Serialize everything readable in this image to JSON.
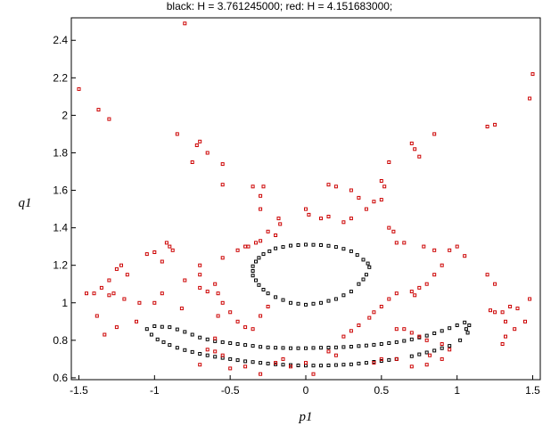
{
  "chart_data": {
    "type": "scatter",
    "title": "black: H = 3.761245000;   red: H = 4.151683000;",
    "xlabel": "p1",
    "ylabel": "q1",
    "xlim": [
      -1.55,
      1.55
    ],
    "ylim": [
      0.59,
      2.52
    ],
    "x_ticks": [
      -1.5,
      -1,
      -0.5,
      0,
      0.5,
      1,
      1.5
    ],
    "x_tick_labels": [
      "-1.5",
      "-1",
      "-0.5",
      "0",
      "0.5",
      "1",
      "1.5"
    ],
    "y_ticks": [
      0.6,
      0.8,
      1,
      1.2,
      1.4,
      1.6,
      1.8,
      2,
      2.2,
      2.4
    ],
    "y_tick_labels": [
      "0.6",
      "0.8",
      "1",
      "1.2",
      "1.4",
      "1.6",
      "1.8",
      "2",
      "2.2",
      "2.4"
    ],
    "grid": false,
    "legend": "none",
    "series": [
      {
        "color": "#000000",
        "marker": "square-open",
        "points": [
          [
            0.0,
            1.31
          ],
          [
            0.1,
            1.308
          ],
          [
            0.2,
            1.298
          ],
          [
            0.3,
            1.275
          ],
          [
            0.38,
            1.23
          ],
          [
            0.42,
            1.19
          ],
          [
            0.4,
            1.15
          ],
          [
            0.35,
            1.1
          ],
          [
            0.3,
            1.06
          ],
          [
            0.2,
            1.02
          ],
          [
            0.1,
            1.0
          ],
          [
            0.0,
            0.99
          ],
          [
            -0.1,
            1.0
          ],
          [
            -0.2,
            1.03
          ],
          [
            -0.28,
            1.07
          ],
          [
            -0.33,
            1.12
          ],
          [
            -0.35,
            1.17
          ],
          [
            -0.33,
            1.22
          ],
          [
            -0.28,
            1.26
          ],
          [
            -0.2,
            1.29
          ],
          [
            -0.1,
            1.305
          ],
          [
            0.05,
            1.309
          ],
          [
            0.15,
            1.304
          ],
          [
            0.25,
            1.288
          ],
          [
            0.34,
            1.255
          ],
          [
            0.41,
            1.21
          ],
          [
            0.38,
            1.125
          ],
          [
            0.25,
            1.04
          ],
          [
            0.15,
            1.01
          ],
          [
            0.05,
            0.995
          ],
          [
            -0.05,
            0.995
          ],
          [
            -0.15,
            1.015
          ],
          [
            -0.25,
            1.05
          ],
          [
            -0.31,
            1.095
          ],
          [
            -0.35,
            1.145
          ],
          [
            -0.35,
            1.195
          ],
          [
            -0.31,
            1.24
          ],
          [
            -0.24,
            1.275
          ],
          [
            -0.15,
            1.298
          ],
          [
            -0.05,
            1.308
          ],
          [
            -1.05,
            0.86
          ],
          [
            -1.0,
            0.875
          ],
          [
            -0.9,
            0.87
          ],
          [
            -0.8,
            0.845
          ],
          [
            -0.7,
            0.815
          ],
          [
            -0.6,
            0.795
          ],
          [
            -0.5,
            0.785
          ],
          [
            -0.4,
            0.775
          ],
          [
            -0.3,
            0.765
          ],
          [
            -0.2,
            0.76
          ],
          [
            -0.1,
            0.758
          ],
          [
            0.0,
            0.758
          ],
          [
            0.1,
            0.76
          ],
          [
            0.2,
            0.762
          ],
          [
            0.3,
            0.766
          ],
          [
            0.4,
            0.772
          ],
          [
            0.5,
            0.78
          ],
          [
            0.6,
            0.79
          ],
          [
            0.7,
            0.805
          ],
          [
            0.8,
            0.825
          ],
          [
            0.9,
            0.85
          ],
          [
            1.0,
            0.88
          ],
          [
            1.05,
            0.895
          ],
          [
            1.08,
            0.88
          ],
          [
            1.07,
            0.84
          ],
          [
            1.02,
            0.8
          ],
          [
            0.95,
            0.77
          ],
          [
            0.85,
            0.745
          ],
          [
            0.75,
            0.725
          ],
          [
            0.6,
            0.7
          ],
          [
            0.5,
            0.69
          ],
          [
            0.4,
            0.68
          ],
          [
            0.3,
            0.672
          ],
          [
            0.2,
            0.668
          ],
          [
            0.1,
            0.665
          ],
          [
            0.0,
            0.665
          ],
          [
            -0.1,
            0.668
          ],
          [
            -0.2,
            0.672
          ],
          [
            -0.3,
            0.68
          ],
          [
            -0.4,
            0.688
          ],
          [
            -0.5,
            0.7
          ],
          [
            -0.6,
            0.712
          ],
          [
            -0.7,
            0.728
          ],
          [
            -0.8,
            0.748
          ],
          [
            -0.9,
            0.775
          ],
          [
            -0.98,
            0.805
          ],
          [
            -1.02,
            0.83
          ],
          [
            -0.95,
            0.872
          ],
          [
            -0.85,
            0.858
          ],
          [
            -0.75,
            0.83
          ],
          [
            -0.65,
            0.805
          ],
          [
            -0.55,
            0.79
          ],
          [
            -0.45,
            0.78
          ],
          [
            -0.35,
            0.77
          ],
          [
            -0.25,
            0.762
          ],
          [
            -0.15,
            0.759
          ],
          [
            -0.05,
            0.758
          ],
          [
            0.05,
            0.759
          ],
          [
            0.15,
            0.761
          ],
          [
            0.25,
            0.764
          ],
          [
            0.35,
            0.769
          ],
          [
            0.45,
            0.776
          ],
          [
            0.55,
            0.785
          ],
          [
            0.65,
            0.797
          ],
          [
            0.75,
            0.815
          ],
          [
            0.85,
            0.837
          ],
          [
            0.95,
            0.865
          ],
          [
            1.06,
            0.86
          ],
          [
            0.9,
            0.758
          ],
          [
            0.8,
            0.735
          ],
          [
            0.7,
            0.715
          ],
          [
            0.55,
            0.695
          ],
          [
            0.45,
            0.685
          ],
          [
            0.35,
            0.676
          ],
          [
            0.25,
            0.67
          ],
          [
            0.15,
            0.666
          ],
          [
            0.05,
            0.665
          ],
          [
            -0.05,
            0.666
          ],
          [
            -0.15,
            0.67
          ],
          [
            -0.25,
            0.676
          ],
          [
            -0.35,
            0.684
          ],
          [
            -0.45,
            0.694
          ],
          [
            -0.55,
            0.706
          ],
          [
            -0.65,
            0.72
          ],
          [
            -0.75,
            0.738
          ],
          [
            -0.85,
            0.76
          ],
          [
            -0.94,
            0.79
          ]
        ]
      },
      {
        "color": "#cc0000",
        "marker": "square-open",
        "points": [
          [
            -0.8,
            2.49
          ],
          [
            -1.5,
            2.14
          ],
          [
            -1.37,
            2.03
          ],
          [
            -1.3,
            1.98
          ],
          [
            -0.85,
            1.9
          ],
          [
            -0.7,
            1.86
          ],
          [
            -0.72,
            1.84
          ],
          [
            -0.65,
            1.8
          ],
          [
            -0.75,
            1.75
          ],
          [
            -0.55,
            1.74
          ],
          [
            -0.55,
            1.63
          ],
          [
            -0.35,
            1.62
          ],
          [
            -0.3,
            1.57
          ],
          [
            -0.28,
            1.62
          ],
          [
            -0.3,
            1.5
          ],
          [
            -0.18,
            1.45
          ],
          [
            -0.17,
            1.42
          ],
          [
            -0.2,
            1.36
          ],
          [
            -0.25,
            1.38
          ],
          [
            -0.3,
            1.33
          ],
          [
            -0.33,
            1.32
          ],
          [
            -0.4,
            1.3
          ],
          [
            -0.38,
            1.3
          ],
          [
            -0.45,
            1.28
          ],
          [
            -0.55,
            1.24
          ],
          [
            -0.7,
            1.2
          ],
          [
            -0.7,
            1.15
          ],
          [
            -0.8,
            1.12
          ],
          [
            -0.9,
            1.3
          ],
          [
            -0.92,
            1.32
          ],
          [
            -0.88,
            1.28
          ],
          [
            -1.0,
            1.27
          ],
          [
            -1.05,
            1.26
          ],
          [
            -0.95,
            1.22
          ],
          [
            -1.22,
            1.2
          ],
          [
            -1.25,
            1.18
          ],
          [
            -1.18,
            1.15
          ],
          [
            -1.3,
            1.12
          ],
          [
            -1.35,
            1.08
          ],
          [
            -1.27,
            1.05
          ],
          [
            -1.45,
            1.05
          ],
          [
            -1.4,
            1.05
          ],
          [
            -1.3,
            1.04
          ],
          [
            -1.2,
            1.02
          ],
          [
            -1.38,
            0.93
          ],
          [
            -1.12,
            0.9
          ],
          [
            -1.0,
            1.0
          ],
          [
            -1.1,
            1.0
          ],
          [
            -0.95,
            1.05
          ],
          [
            -0.82,
            0.97
          ],
          [
            -0.7,
            1.08
          ],
          [
            -0.65,
            1.06
          ],
          [
            -0.6,
            1.1
          ],
          [
            -0.58,
            1.05
          ],
          [
            -0.55,
            1.0
          ],
          [
            -0.5,
            0.95
          ],
          [
            -0.58,
            0.93
          ],
          [
            -0.45,
            0.9
          ],
          [
            -0.4,
            0.87
          ],
          [
            -0.35,
            0.86
          ],
          [
            -0.3,
            0.93
          ],
          [
            -0.25,
            0.98
          ],
          [
            -0.6,
            0.81
          ],
          [
            -0.65,
            0.75
          ],
          [
            -0.6,
            0.74
          ],
          [
            -0.55,
            0.72
          ],
          [
            -0.7,
            0.67
          ],
          [
            -0.5,
            0.65
          ],
          [
            -0.4,
            0.66
          ],
          [
            -0.3,
            0.62
          ],
          [
            -0.2,
            0.68
          ],
          [
            -0.15,
            0.7
          ],
          [
            -0.1,
            0.66
          ],
          [
            0.05,
            0.62
          ],
          [
            0.0,
            0.68
          ],
          [
            -1.33,
            0.83
          ],
          [
            -1.25,
            0.87
          ],
          [
            0.0,
            1.5
          ],
          [
            0.02,
            1.47
          ],
          [
            0.1,
            1.45
          ],
          [
            0.15,
            1.63
          ],
          [
            0.2,
            1.62
          ],
          [
            0.3,
            1.6
          ],
          [
            0.35,
            1.56
          ],
          [
            0.45,
            1.54
          ],
          [
            0.5,
            1.65
          ],
          [
            0.52,
            1.62
          ],
          [
            0.55,
            1.75
          ],
          [
            0.5,
            1.55
          ],
          [
            0.4,
            1.5
          ],
          [
            0.3,
            1.45
          ],
          [
            0.25,
            1.43
          ],
          [
            0.15,
            1.46
          ],
          [
            0.55,
            1.4
          ],
          [
            0.58,
            1.38
          ],
          [
            0.6,
            1.32
          ],
          [
            0.7,
            1.85
          ],
          [
            0.72,
            1.82
          ],
          [
            0.75,
            1.78
          ],
          [
            0.85,
            1.9
          ],
          [
            0.65,
            1.32
          ],
          [
            0.78,
            1.3
          ],
          [
            0.85,
            1.28
          ],
          [
            0.95,
            1.28
          ],
          [
            1.0,
            1.3
          ],
          [
            1.05,
            1.25
          ],
          [
            0.9,
            1.2
          ],
          [
            0.85,
            1.15
          ],
          [
            0.8,
            1.1
          ],
          [
            0.75,
            1.08
          ],
          [
            0.7,
            1.06
          ],
          [
            0.72,
            1.04
          ],
          [
            0.6,
            1.05
          ],
          [
            0.55,
            1.02
          ],
          [
            0.5,
            0.98
          ],
          [
            0.45,
            0.95
          ],
          [
            0.42,
            0.92
          ],
          [
            0.35,
            0.88
          ],
          [
            0.3,
            0.85
          ],
          [
            0.25,
            0.82
          ],
          [
            1.2,
            1.94
          ],
          [
            1.25,
            1.95
          ],
          [
            1.5,
            2.22
          ],
          [
            1.48,
            2.09
          ],
          [
            1.2,
            1.15
          ],
          [
            1.25,
            1.1
          ],
          [
            1.48,
            1.02
          ],
          [
            1.22,
            0.96
          ],
          [
            1.3,
            0.95
          ],
          [
            1.35,
            0.98
          ],
          [
            1.4,
            0.97
          ],
          [
            1.45,
            0.9
          ],
          [
            1.32,
            0.9
          ],
          [
            1.38,
            0.86
          ],
          [
            1.25,
            0.95
          ],
          [
            1.3,
            0.78
          ],
          [
            1.32,
            0.82
          ],
          [
            0.6,
            0.86
          ],
          [
            0.65,
            0.86
          ],
          [
            0.7,
            0.84
          ],
          [
            0.75,
            0.82
          ],
          [
            0.8,
            0.8
          ],
          [
            0.9,
            0.78
          ],
          [
            0.95,
            0.75
          ],
          [
            0.82,
            0.72
          ],
          [
            0.9,
            0.7
          ],
          [
            0.8,
            0.67
          ],
          [
            0.7,
            0.66
          ],
          [
            0.6,
            0.7
          ],
          [
            0.5,
            0.7
          ],
          [
            0.45,
            0.68
          ],
          [
            0.2,
            0.72
          ],
          [
            0.15,
            0.74
          ]
        ]
      }
    ]
  }
}
